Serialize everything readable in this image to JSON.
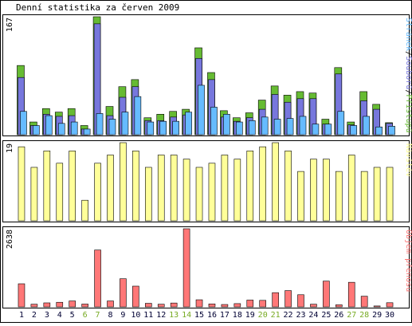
{
  "chart_data": {
    "type": "bar",
    "title": "Denní statistika za červen 2009",
    "categories": [
      "1",
      "2",
      "3",
      "4",
      "5",
      "6",
      "7",
      "8",
      "9",
      "10",
      "11",
      "12",
      "13",
      "14",
      "15",
      "16",
      "17",
      "18",
      "19",
      "20",
      "21",
      "22",
      "23",
      "24",
      "25",
      "26",
      "27",
      "28",
      "29",
      "30"
    ],
    "weekend_days": [
      "6",
      "7",
      "13",
      "14",
      "20",
      "21",
      "27",
      "28"
    ],
    "colors": {
      "pristupu": "#66bb33",
      "souboru": "#7777dd",
      "stranek": "#66bbff",
      "navstev": "#ffff99",
      "objem": "#ff7777",
      "weekend_label": "#77aa22",
      "workday_label": "#000033"
    },
    "panels": [
      {
        "id": "hits",
        "ymax_label": "167",
        "ylim": [
          0,
          167
        ],
        "legend": [
          {
            "text": "Stránek",
            "color": "#66bbff"
          },
          {
            "text": "/",
            "color": "#000000"
          },
          {
            "text": "Souborů",
            "color": "#7777dd"
          },
          {
            "text": "/",
            "color": "#000000"
          },
          {
            "text": "Přístupů",
            "color": "#66bb33"
          }
        ],
        "series": [
          {
            "name": "Přístupů",
            "values": [
              98,
              18,
              37,
              32,
              37,
              13,
              167,
              40,
              68,
              78,
              24,
              29,
              33,
              36,
              123,
              88,
              34,
              24,
              31,
              49,
              69,
              56,
              61,
              59,
              22,
              95,
              18,
              61,
              43,
              17
            ]
          },
          {
            "name": "Souborů",
            "values": [
              81,
              13,
              29,
              26,
              27,
              8,
              157,
              27,
              53,
              68,
              20,
              20,
              25,
              28,
              108,
              78,
              25,
              19,
              24,
              36,
              57,
              46,
              51,
              51,
              15,
              86,
              14,
              48,
              36,
              16
            ]
          },
          {
            "name": "Stránek",
            "values": [
              33,
              13,
              27,
              16,
              18,
              8,
              30,
              22,
              32,
              54,
              18,
              19,
              19,
              32,
              70,
              39,
              29,
              18,
              20,
              25,
              22,
              23,
              26,
              15,
              15,
              33,
              13,
              26,
              11,
              12
            ]
          }
        ]
      },
      {
        "id": "visits",
        "ymax_label": "19",
        "ylim": [
          0,
          19
        ],
        "legend": [
          {
            "text": "Návštěv",
            "color": "#ffff99"
          }
        ],
        "series": [
          {
            "name": "Návštěv",
            "values": [
              18,
              13,
              17,
              14,
              17,
              5,
              14,
              16,
              19,
              17,
              13,
              16,
              16,
              15,
              13,
              14,
              16,
              15,
              17,
              18,
              19,
              17,
              12,
              15,
              15,
              12,
              16,
              12,
              13,
              13
            ]
          }
        ]
      },
      {
        "id": "volume",
        "ymax_label": "2638",
        "ylim": [
          0,
          2638
        ],
        "legend": [
          {
            "text": "Objem přenosu",
            "color": "#ff7777"
          }
        ],
        "series": [
          {
            "name": "Objem přenosu",
            "values": [
              780,
              90,
              135,
              155,
              200,
              95,
              1920,
              200,
              950,
              700,
              120,
              90,
              130,
              2638,
              240,
              100,
              80,
              110,
              230,
              220,
              480,
              550,
              410,
              90,
              870,
              70,
              830,
              360,
              30,
              140
            ]
          }
        ]
      }
    ]
  }
}
